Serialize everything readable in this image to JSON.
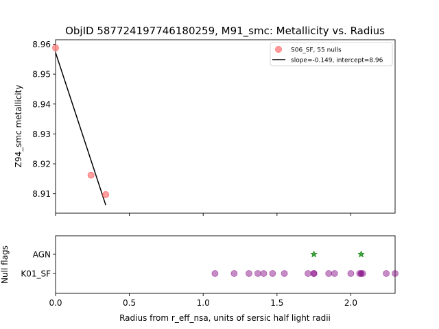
{
  "chart_data": [
    {
      "type": "scatter",
      "title": "ObjID 587724197746180259, M91_smc: Metallicity vs. Radius",
      "xlabel": "",
      "ylabel": "Z94_smc metallicity",
      "xlim": [
        0.0,
        2.3
      ],
      "ylim": [
        8.9035,
        8.9615
      ],
      "xticks": [
        0.0,
        0.5,
        1.0,
        1.5,
        2.0
      ],
      "yticks": [
        8.91,
        8.92,
        8.93,
        8.94,
        8.95,
        8.96
      ],
      "ytick_labels": [
        "8.91",
        "8.92",
        "8.93",
        "8.94",
        "8.95",
        "8.96"
      ],
      "legend_position": "top-right",
      "series": [
        {
          "name": "S06_SF, 55 nulls",
          "kind": "scatter",
          "color": "#ff7f7f",
          "points": [
            {
              "x": 0.0,
              "y": 8.9588
            },
            {
              "x": 0.24,
              "y": 8.9162
            },
            {
              "x": 0.34,
              "y": 8.9097
            }
          ]
        },
        {
          "name": "slope=-0.149, intercept=8.96",
          "kind": "line",
          "color": "#000000",
          "points": [
            {
              "x": 0.0,
              "y": 8.9572
            },
            {
              "x": 0.34,
              "y": 8.9062
            }
          ]
        }
      ]
    },
    {
      "type": "scatter",
      "title": "",
      "xlabel": "Radius from r_eff_nsa, units of sersic half light radii",
      "ylabel": "Null flags",
      "xlim": [
        0.0,
        2.3
      ],
      "xticks": [
        0.0,
        0.5,
        1.0,
        1.5,
        2.0
      ],
      "xtick_labels": [
        "0.0",
        "0.5",
        "1.0",
        "1.5",
        "2.0"
      ],
      "categories": [
        "K01_SF",
        "AGN"
      ],
      "series": [
        {
          "category": "K01_SF",
          "marker": "circle",
          "color": "#800080",
          "x": [
            1.08,
            1.21,
            1.31,
            1.37,
            1.41,
            1.47,
            1.55,
            1.71,
            1.75,
            1.75,
            1.85,
            1.89,
            2.0,
            2.06,
            2.07,
            2.08,
            2.24,
            2.3
          ]
        },
        {
          "category": "AGN",
          "marker": "star",
          "color": "#008000",
          "x": [
            1.75,
            2.07
          ]
        }
      ]
    }
  ]
}
